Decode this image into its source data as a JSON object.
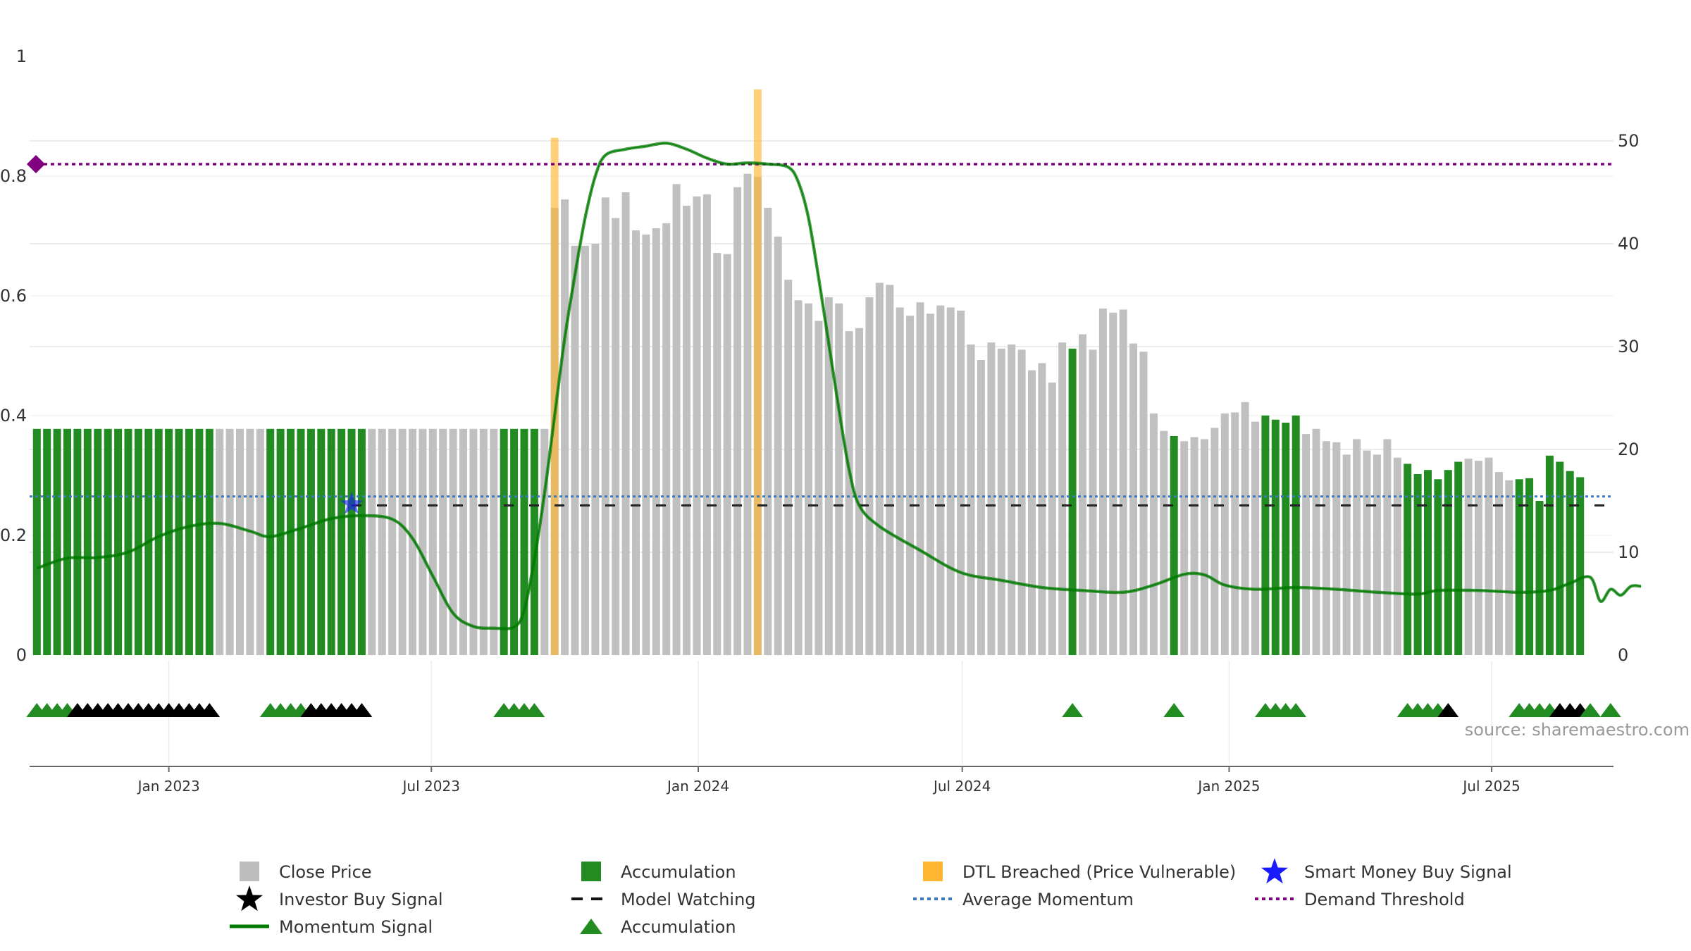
{
  "chart_data": {
    "type": "bar",
    "watermark": "source: sharemaestro.com",
    "x_ticks": [
      "Jan 2023",
      "Jul 2023",
      "Jan 2024",
      "Jul 2024",
      "Jan 2025",
      "Jul 2025"
    ],
    "x_tick_dates": [
      "2023-01-01",
      "2023-07-01",
      "2024-01-01",
      "2024-07-01",
      "2025-01-01",
      "2025-07-01"
    ],
    "x_range": [
      "2022-09-27",
      "2025-09-23"
    ],
    "left_axis": {
      "ticks": [
        "0",
        "0.2",
        "0.4",
        "0.6",
        "0.8",
        "1"
      ],
      "range": [
        0,
        1
      ]
    },
    "right_axis": {
      "ticks": [
        "0",
        "10",
        "20",
        "30",
        "40",
        "50"
      ],
      "range": [
        0,
        50
      ]
    },
    "average_momentum": 0.265,
    "demand_threshold": 0.82,
    "model_watching_level": 0.25,
    "colors": {
      "close_price": "#c0c0c0",
      "accumulation": "#228b22",
      "dtl": "#ffb733",
      "momentum": "#007a00",
      "avg_momentum": "#3a7bbf",
      "demand": "#800080",
      "investor": "#000000",
      "smart_money": "#1a1aff"
    },
    "week_start": "2022-10-02",
    "price": [
      22,
      22,
      22,
      22,
      22,
      22,
      22,
      22,
      22,
      22,
      22,
      22,
      22,
      22,
      22,
      22,
      22,
      22,
      22,
      22,
      22,
      22,
      22,
      22,
      22,
      22,
      22,
      22,
      22,
      22,
      22,
      22,
      22,
      22,
      22,
      22,
      22,
      22,
      22,
      22,
      22,
      22,
      22,
      22,
      22,
      22,
      22,
      22,
      22,
      22,
      22,
      43.5,
      44.3,
      39.8,
      39.8,
      40,
      44.5,
      42.5,
      45,
      41.3,
      40.9,
      41.5,
      42,
      45.8,
      43.7,
      44.6,
      44.8,
      39.1,
      39,
      45.5,
      46.8,
      46.5,
      43.5,
      40.7,
      36.5,
      34.5,
      34.2,
      32.5,
      34.8,
      34.2,
      31.5,
      31.8,
      34.8,
      36.2,
      36,
      33.8,
      33,
      34.3,
      33.2,
      34,
      33.8,
      33.5,
      30.2,
      28.7,
      30.4,
      29.8,
      30.2,
      29.7,
      27.7,
      28.4,
      26.5,
      30.4,
      29.8,
      31.2,
      29.7,
      33.7,
      33.3,
      33.6,
      30.3,
      29.5,
      23.5,
      21.8,
      21.3,
      20.8,
      21.2,
      21,
      22.1,
      23.5,
      23.6,
      24.6,
      22.7,
      23.3,
      22.9,
      22.6,
      23.3,
      21.5,
      22,
      20.8,
      20.7,
      19.5,
      21,
      19.9,
      19.5,
      21,
      19.2,
      18.6,
      17.6,
      18,
      17.1,
      18,
      18.8,
      19.1,
      18.9,
      19.2,
      17.8,
      17,
      17.1,
      17.2,
      15,
      19.4,
      18.8,
      17.9,
      17.3
    ],
    "accumulation_weeks": [
      0,
      1,
      2,
      3,
      4,
      5,
      6,
      7,
      8,
      9,
      10,
      11,
      12,
      13,
      14,
      15,
      16,
      17,
      23,
      24,
      25,
      26,
      27,
      28,
      29,
      30,
      31,
      32,
      46,
      47,
      48,
      49,
      102,
      112,
      121,
      122,
      123,
      124,
      135,
      136,
      137,
      138,
      139,
      140,
      146,
      147,
      148,
      149,
      150,
      151,
      152,
      155,
      157
    ],
    "dtl_weeks": [
      51,
      71
    ],
    "dtl_heights": [
      50.3,
      55
    ],
    "momentum": [
      [
        0,
        0.145
      ],
      [
        3,
        0.162
      ],
      [
        6,
        0.163
      ],
      [
        9,
        0.172
      ],
      [
        12,
        0.198
      ],
      [
        15,
        0.215
      ],
      [
        18,
        0.22
      ],
      [
        21,
        0.207
      ],
      [
        23,
        0.198
      ],
      [
        26,
        0.212
      ],
      [
        29,
        0.228
      ],
      [
        32,
        0.233
      ],
      [
        35,
        0.227
      ],
      [
        37,
        0.195
      ],
      [
        39,
        0.132
      ],
      [
        41,
        0.07
      ],
      [
        43,
        0.048
      ],
      [
        45,
        0.045
      ],
      [
        47,
        0.047
      ],
      [
        48,
        0.075
      ],
      [
        49,
        0.16
      ],
      [
        50,
        0.27
      ],
      [
        51,
        0.4
      ],
      [
        52,
        0.53
      ],
      [
        53,
        0.635
      ],
      [
        54,
        0.73
      ],
      [
        55,
        0.8
      ],
      [
        56,
        0.835
      ],
      [
        58,
        0.845
      ],
      [
        60,
        0.85
      ],
      [
        62,
        0.855
      ],
      [
        64,
        0.845
      ],
      [
        66,
        0.83
      ],
      [
        68,
        0.82
      ],
      [
        70,
        0.822
      ],
      [
        72,
        0.82
      ],
      [
        74,
        0.815
      ],
      [
        75,
        0.79
      ],
      [
        76,
        0.73
      ],
      [
        77,
        0.63
      ],
      [
        78,
        0.52
      ],
      [
        79,
        0.41
      ],
      [
        80,
        0.31
      ],
      [
        81,
        0.25
      ],
      [
        83,
        0.215
      ],
      [
        87,
        0.175
      ],
      [
        91,
        0.138
      ],
      [
        95,
        0.125
      ],
      [
        99,
        0.113
      ],
      [
        103,
        0.108
      ],
      [
        107,
        0.105
      ],
      [
        110,
        0.117
      ],
      [
        113,
        0.135
      ],
      [
        115,
        0.134
      ],
      [
        117,
        0.117
      ],
      [
        120,
        0.11
      ],
      [
        124,
        0.113
      ],
      [
        128,
        0.11
      ],
      [
        132,
        0.105
      ],
      [
        136,
        0.102
      ],
      [
        138,
        0.108
      ],
      [
        142,
        0.108
      ],
      [
        146,
        0.105
      ],
      [
        149,
        0.108
      ],
      [
        151,
        0.12
      ],
      [
        153,
        0.13
      ],
      [
        154,
        0.09
      ],
      [
        155,
        0.11
      ],
      [
        156,
        0.1
      ],
      [
        157,
        0.115
      ],
      [
        158,
        0.115
      ]
    ],
    "smart_money_signal": {
      "week": 31,
      "value": 0.245
    },
    "markers": [
      {
        "week": 0,
        "type": "acc"
      },
      {
        "week": 1,
        "type": "acc"
      },
      {
        "week": 2,
        "type": "acc"
      },
      {
        "week": 3,
        "type": "acc"
      },
      {
        "week": 4,
        "type": "inv"
      },
      {
        "week": 5,
        "type": "inv"
      },
      {
        "week": 6,
        "type": "inv"
      },
      {
        "week": 7,
        "type": "inv"
      },
      {
        "week": 8,
        "type": "inv"
      },
      {
        "week": 9,
        "type": "inv"
      },
      {
        "week": 10,
        "type": "inv"
      },
      {
        "week": 11,
        "type": "inv"
      },
      {
        "week": 12,
        "type": "inv"
      },
      {
        "week": 13,
        "type": "inv"
      },
      {
        "week": 14,
        "type": "inv"
      },
      {
        "week": 15,
        "type": "inv"
      },
      {
        "week": 16,
        "type": "inv"
      },
      {
        "week": 17,
        "type": "inv"
      },
      {
        "week": 23,
        "type": "acc"
      },
      {
        "week": 24,
        "type": "acc"
      },
      {
        "week": 25,
        "type": "acc"
      },
      {
        "week": 26,
        "type": "acc"
      },
      {
        "week": 27,
        "type": "inv"
      },
      {
        "week": 28,
        "type": "inv"
      },
      {
        "week": 29,
        "type": "inv"
      },
      {
        "week": 30,
        "type": "inv"
      },
      {
        "week": 31,
        "type": "inv"
      },
      {
        "week": 32,
        "type": "inv"
      },
      {
        "week": 46,
        "type": "acc"
      },
      {
        "week": 47,
        "type": "acc"
      },
      {
        "week": 48,
        "type": "acc"
      },
      {
        "week": 49,
        "type": "acc"
      },
      {
        "week": 102,
        "type": "acc"
      },
      {
        "week": 112,
        "type": "acc"
      },
      {
        "week": 121,
        "type": "acc"
      },
      {
        "week": 122,
        "type": "acc"
      },
      {
        "week": 123,
        "type": "acc"
      },
      {
        "week": 124,
        "type": "acc"
      },
      {
        "week": 135,
        "type": "acc"
      },
      {
        "week": 136,
        "type": "acc"
      },
      {
        "week": 137,
        "type": "acc"
      },
      {
        "week": 138,
        "type": "acc"
      },
      {
        "week": 139,
        "type": "inv"
      },
      {
        "week": 146,
        "type": "acc"
      },
      {
        "week": 147,
        "type": "acc"
      },
      {
        "week": 148,
        "type": "acc"
      },
      {
        "week": 149,
        "type": "acc"
      },
      {
        "week": 150,
        "type": "inv"
      },
      {
        "week": 151,
        "type": "inv"
      },
      {
        "week": 152,
        "type": "inv"
      },
      {
        "week": 153,
        "type": "acc"
      },
      {
        "week": 155,
        "type": "acc"
      }
    ],
    "legend": [
      {
        "label": "Close Price",
        "key": "price"
      },
      {
        "label": "Accumulation",
        "key": "acc_bar"
      },
      {
        "label": "DTL Breached (Price Vulnerable)",
        "key": "dtl"
      },
      {
        "label": "Smart Money Buy Signal",
        "key": "smart"
      },
      {
        "label": "Investor Buy Signal",
        "key": "investor"
      },
      {
        "label": "Model Watching",
        "key": "watching"
      },
      {
        "label": "Average Momentum",
        "key": "avg"
      },
      {
        "label": "Demand Threshold",
        "key": "demand"
      },
      {
        "label": "Momentum Signal",
        "key": "momentum"
      },
      {
        "label": "Accumulation",
        "key": "acc_tri"
      }
    ]
  }
}
